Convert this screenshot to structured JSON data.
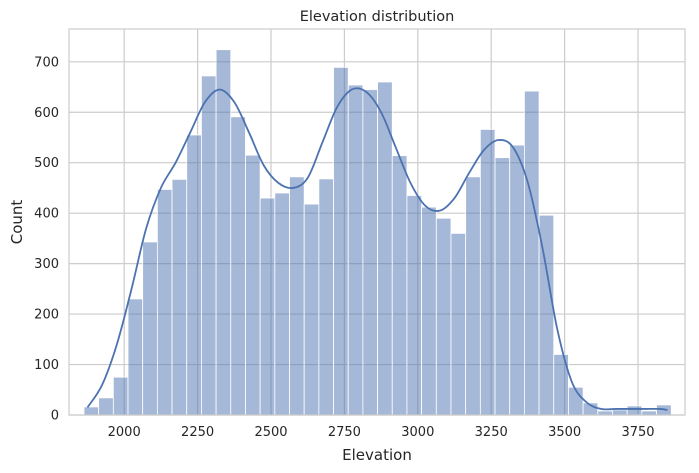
{
  "chart_data": {
    "type": "bar",
    "title": "Elevation distribution",
    "xlabel": "Elevation",
    "ylabel": "Count",
    "xlim": [
      1812,
      3910
    ],
    "ylim": [
      0,
      765
    ],
    "xticks": [
      2000,
      2250,
      2500,
      2750,
      3000,
      3250,
      3500,
      3750
    ],
    "yticks": [
      0,
      100,
      200,
      300,
      400,
      500,
      600,
      700
    ],
    "grid": true,
    "legend": "none",
    "bar_color": "#4c72b0",
    "bar_opacity": 0.5,
    "line_color": "#4c72b0",
    "bins": {
      "start": 1863,
      "width": 50,
      "values": [
        16,
        34,
        75,
        230,
        343,
        447,
        467,
        555,
        672,
        724,
        591,
        515,
        430,
        440,
        472,
        418,
        468,
        689,
        654,
        645,
        660,
        514,
        435,
        412,
        390,
        360,
        472,
        566,
        510,
        535,
        642,
        396,
        120,
        55,
        24,
        8,
        10,
        18,
        8,
        20
      ]
    },
    "kde": {
      "x": [
        1875,
        1925,
        1975,
        2025,
        2075,
        2125,
        2175,
        2225,
        2275,
        2325,
        2375,
        2425,
        2475,
        2525,
        2575,
        2625,
        2675,
        2725,
        2775,
        2825,
        2875,
        2925,
        2975,
        3025,
        3075,
        3125,
        3175,
        3225,
        3275,
        3325,
        3375,
        3425,
        3475,
        3525,
        3575,
        3625,
        3675,
        3725,
        3775,
        3825,
        3850
      ],
      "y": [
        15,
        60,
        140,
        250,
        370,
        450,
        500,
        560,
        620,
        645,
        620,
        560,
        495,
        460,
        450,
        470,
        540,
        610,
        645,
        640,
        600,
        530,
        460,
        415,
        405,
        430,
        480,
        525,
        545,
        530,
        460,
        330,
        170,
        65,
        25,
        12,
        12,
        12,
        12,
        12,
        10
      ]
    }
  }
}
